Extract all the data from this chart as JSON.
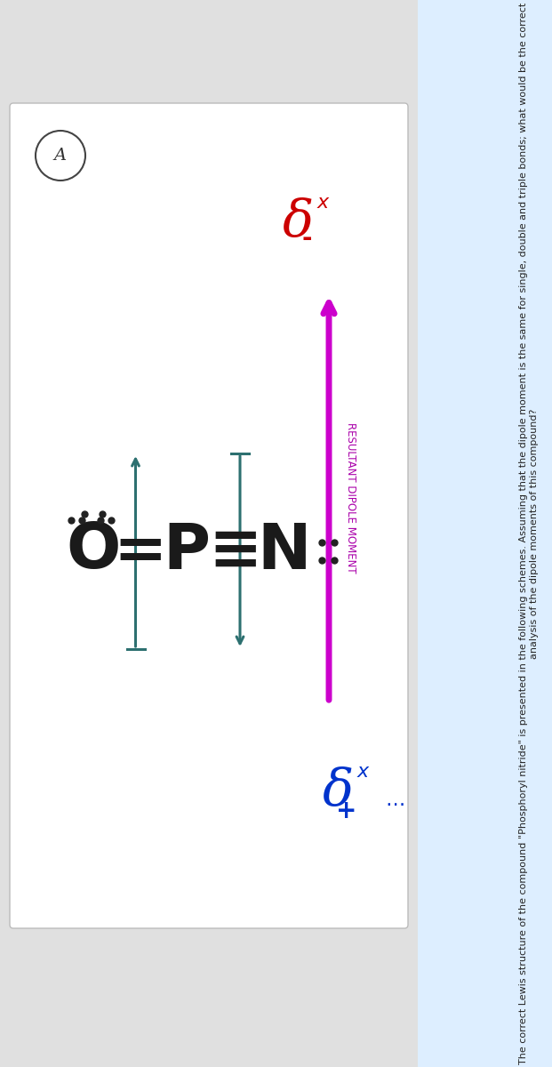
{
  "bg_color": "#e0e0e0",
  "panel_bg": "#ffffff",
  "title_text": "The correct Lewis structure of the compound \"Phosphoryl nitride\" is presented in the following schemes. Assuming that the dipole moment is the same for single, double and triple bonds; what would be the correct analysis of the dipole moments of this compound?",
  "title_fontsize": 8.5,
  "title_color": "#222222",
  "title_highlight_color": "#aaccee",
  "label_A": "A",
  "label_A_fontsize": 13,
  "lewis_color": "#1a1a1a",
  "dots_color": "#222222",
  "arrow_op_color": "#2d7070",
  "arrow_pn_color": "#2d7070",
  "resultant_arrow_color": "#cc00cc",
  "resultant_label": "RESULTANT DIPOLE MOMENT",
  "resultant_label_color": "#aa00aa",
  "resultant_label_fontsize": 8.5,
  "delta_minus_color": "#cc0000",
  "delta_plus_color": "#0033cc",
  "delta_fontsize": 30,
  "panel_shadow": "#cccccc"
}
